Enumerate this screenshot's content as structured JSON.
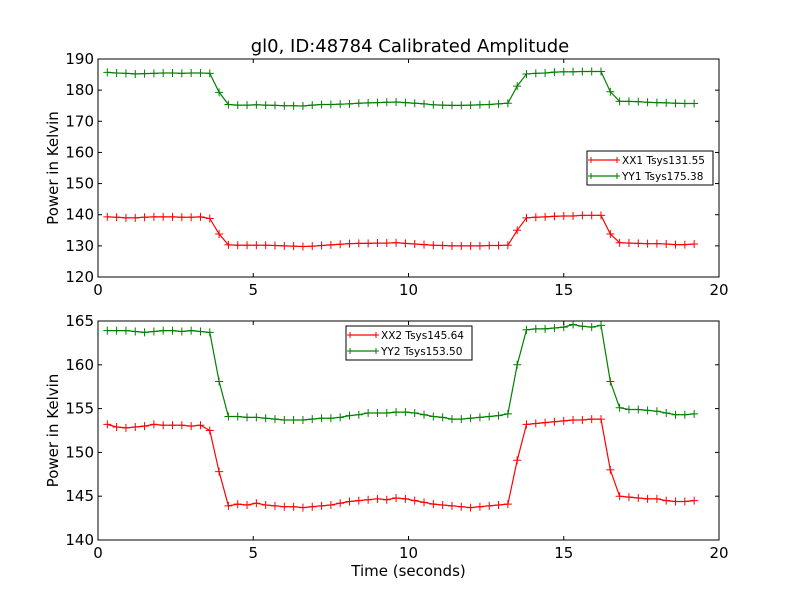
{
  "figure": {
    "title": "gl0, ID:48784 Calibrated Amplitude"
  },
  "chart_data": [
    {
      "type": "line",
      "title": "gl0, ID:48784 Calibrated Amplitude",
      "xlabel": "",
      "ylabel": "Power in Kelvin",
      "xlim": [
        0,
        20
      ],
      "ylim": [
        120,
        190
      ],
      "xticks": [
        0,
        5,
        10,
        15,
        20
      ],
      "yticks": [
        120,
        130,
        140,
        150,
        160,
        170,
        180,
        190
      ],
      "grid": false,
      "legend_position": "center-right",
      "x": [
        0.3,
        0.6,
        0.9,
        1.2,
        1.5,
        1.8,
        2.1,
        2.4,
        2.7,
        3.0,
        3.3,
        3.6,
        3.9,
        4.2,
        4.5,
        4.8,
        5.1,
        5.4,
        5.7,
        6.0,
        6.3,
        6.6,
        6.9,
        7.2,
        7.5,
        7.8,
        8.1,
        8.4,
        8.7,
        9.0,
        9.3,
        9.6,
        9.9,
        10.2,
        10.5,
        10.8,
        11.1,
        11.4,
        11.7,
        12.0,
        12.3,
        12.6,
        12.9,
        13.2,
        13.5,
        13.8,
        14.1,
        14.4,
        14.7,
        15.0,
        15.3,
        15.6,
        15.9,
        16.2,
        16.5,
        16.8,
        17.1,
        17.4,
        17.7,
        18.0,
        18.3,
        18.6,
        18.9,
        19.2
      ],
      "series": [
        {
          "name": "XX1 Tsys131.55",
          "color": "#ff0000",
          "values": [
            139.3,
            139.2,
            139.0,
            139.0,
            139.2,
            139.3,
            139.3,
            139.3,
            139.2,
            139.2,
            139.3,
            138.8,
            133.8,
            130.3,
            130.2,
            130.2,
            130.2,
            130.2,
            130.1,
            130.0,
            129.9,
            129.8,
            129.9,
            130.1,
            130.3,
            130.5,
            130.7,
            130.8,
            130.8,
            130.9,
            130.9,
            131.0,
            130.8,
            130.6,
            130.4,
            130.2,
            130.1,
            130.0,
            130.0,
            130.0,
            130.0,
            130.1,
            130.1,
            130.2,
            135.0,
            139.0,
            139.2,
            139.3,
            139.5,
            139.6,
            139.6,
            139.8,
            139.8,
            139.8,
            133.8,
            131.0,
            130.9,
            130.8,
            130.7,
            130.7,
            130.6,
            130.4,
            130.4,
            130.6
          ]
        },
        {
          "name": "YY1 Tsys175.38",
          "color": "#008000",
          "values": [
            185.7,
            185.5,
            185.4,
            185.2,
            185.3,
            185.4,
            185.5,
            185.5,
            185.4,
            185.5,
            185.5,
            185.4,
            179.3,
            175.4,
            175.2,
            175.2,
            175.3,
            175.2,
            175.1,
            175.0,
            175.0,
            174.9,
            175.2,
            175.4,
            175.4,
            175.5,
            175.6,
            175.8,
            175.9,
            176.0,
            176.1,
            176.2,
            176.0,
            175.8,
            175.6,
            175.3,
            175.2,
            175.1,
            175.1,
            175.2,
            175.3,
            175.4,
            175.6,
            175.8,
            181.3,
            185.2,
            185.4,
            185.5,
            185.8,
            185.9,
            185.9,
            186.0,
            186.0,
            186.0,
            179.5,
            176.4,
            176.4,
            176.3,
            176.1,
            176.0,
            175.9,
            175.8,
            175.7,
            175.7
          ]
        }
      ]
    },
    {
      "type": "line",
      "title": "",
      "xlabel": "Time (seconds)",
      "ylabel": "Power in Kelvin",
      "xlim": [
        0,
        20
      ],
      "ylim": [
        140,
        165
      ],
      "xticks": [
        0,
        5,
        10,
        15,
        20
      ],
      "yticks": [
        140,
        145,
        150,
        155,
        160,
        165
      ],
      "grid": false,
      "legend_position": "top-center",
      "x": [
        0.3,
        0.6,
        0.9,
        1.2,
        1.5,
        1.8,
        2.1,
        2.4,
        2.7,
        3.0,
        3.3,
        3.6,
        3.9,
        4.2,
        4.5,
        4.8,
        5.1,
        5.4,
        5.7,
        6.0,
        6.3,
        6.6,
        6.9,
        7.2,
        7.5,
        7.8,
        8.1,
        8.4,
        8.7,
        9.0,
        9.3,
        9.6,
        9.9,
        10.2,
        10.5,
        10.8,
        11.1,
        11.4,
        11.7,
        12.0,
        12.3,
        12.6,
        12.9,
        13.2,
        13.5,
        13.8,
        14.1,
        14.4,
        14.7,
        15.0,
        15.3,
        15.6,
        15.9,
        16.2,
        16.5,
        16.8,
        17.1,
        17.4,
        17.7,
        18.0,
        18.3,
        18.6,
        18.9,
        19.2
      ],
      "series": [
        {
          "name": "XX2 Tsys145.64",
          "color": "#ff0000",
          "values": [
            153.2,
            152.9,
            152.8,
            152.9,
            153.0,
            153.2,
            153.1,
            153.1,
            153.1,
            153.0,
            153.1,
            152.5,
            147.8,
            143.9,
            144.1,
            144.0,
            144.2,
            144.0,
            143.9,
            143.8,
            143.8,
            143.7,
            143.8,
            143.9,
            144.0,
            144.2,
            144.4,
            144.5,
            144.6,
            144.7,
            144.6,
            144.8,
            144.7,
            144.5,
            144.3,
            144.1,
            144.0,
            143.9,
            143.8,
            143.7,
            143.8,
            143.9,
            144.0,
            144.1,
            149.1,
            153.2,
            153.3,
            153.4,
            153.5,
            153.6,
            153.7,
            153.7,
            153.8,
            153.8,
            148.0,
            145.0,
            144.9,
            144.8,
            144.7,
            144.7,
            144.5,
            144.4,
            144.4,
            144.5
          ]
        },
        {
          "name": "YY2 Tsys153.50",
          "color": "#008000",
          "values": [
            163.9,
            163.9,
            163.9,
            163.8,
            163.7,
            163.8,
            163.9,
            163.9,
            163.8,
            163.9,
            163.8,
            163.7,
            158.1,
            154.1,
            154.1,
            154.0,
            154.0,
            153.9,
            153.8,
            153.7,
            153.7,
            153.7,
            153.8,
            153.9,
            153.9,
            154.0,
            154.2,
            154.3,
            154.5,
            154.5,
            154.5,
            154.6,
            154.6,
            154.5,
            154.3,
            154.1,
            154.0,
            153.8,
            153.8,
            153.9,
            154.0,
            154.1,
            154.2,
            154.4,
            160.0,
            164.0,
            164.1,
            164.1,
            164.2,
            164.3,
            164.6,
            164.4,
            164.3,
            164.5,
            158.1,
            155.1,
            154.9,
            154.9,
            154.8,
            154.7,
            154.5,
            154.3,
            154.3,
            154.4
          ]
        }
      ]
    }
  ]
}
